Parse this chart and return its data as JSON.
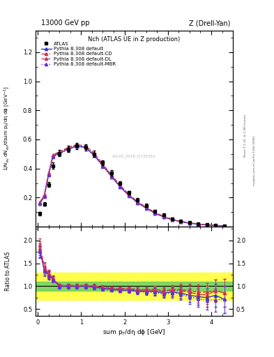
{
  "title_top": "13000 GeV pp",
  "title_right": "Z (Drell-Yan)",
  "plot_title": "Nch (ATLAS UE in Z production)",
  "xlabel": "sum p$_T$/dη dϕ [GeV]",
  "ylabel_main": "1/N$_{ev}$ dN$_{ev}$/dsum p$_T$/dη dϕ [GeV$^{-1}$]",
  "ylabel_ratio": "Ratio to ATLAS",
  "watermark": "ATLAS_2019_I1735351",
  "rivet_text": "Rivet 3.1.10, ≥ 3.3M events",
  "arxiv_text": "mcplots.cern.ch [arXiv:1306.3436]",
  "xlim": [
    -0.05,
    4.5
  ],
  "ylim_main": [
    0,
    1.35
  ],
  "ylim_ratio": [
    0.35,
    2.3
  ],
  "atlas_x": [
    0.05,
    0.15,
    0.25,
    0.35,
    0.5,
    0.7,
    0.9,
    1.1,
    1.3,
    1.5,
    1.7,
    1.9,
    2.1,
    2.3,
    2.5,
    2.7,
    2.9,
    3.1,
    3.3,
    3.5,
    3.7,
    3.9,
    4.1,
    4.3
  ],
  "atlas_y": [
    0.09,
    0.155,
    0.29,
    0.42,
    0.505,
    0.535,
    0.555,
    0.545,
    0.5,
    0.44,
    0.37,
    0.3,
    0.235,
    0.185,
    0.145,
    0.105,
    0.08,
    0.055,
    0.04,
    0.03,
    0.022,
    0.016,
    0.01,
    0.007
  ],
  "atlas_yerr": [
    0.012,
    0.012,
    0.018,
    0.022,
    0.022,
    0.022,
    0.022,
    0.022,
    0.022,
    0.018,
    0.018,
    0.014,
    0.012,
    0.012,
    0.012,
    0.01,
    0.009,
    0.007,
    0.006,
    0.005,
    0.004,
    0.003,
    0.002,
    0.002
  ],
  "py_default_x": [
    0.05,
    0.15,
    0.25,
    0.35,
    0.5,
    0.7,
    0.9,
    1.1,
    1.3,
    1.5,
    1.7,
    1.9,
    2.1,
    2.3,
    2.5,
    2.7,
    2.9,
    3.1,
    3.3,
    3.5,
    3.7,
    3.9,
    4.1,
    4.3
  ],
  "py_default_y": [
    0.16,
    0.21,
    0.36,
    0.485,
    0.505,
    0.535,
    0.555,
    0.545,
    0.49,
    0.42,
    0.345,
    0.275,
    0.215,
    0.165,
    0.128,
    0.093,
    0.068,
    0.048,
    0.034,
    0.024,
    0.017,
    0.012,
    0.008,
    0.005
  ],
  "py_cd_x": [
    0.05,
    0.15,
    0.25,
    0.35,
    0.5,
    0.7,
    0.9,
    1.1,
    1.3,
    1.5,
    1.7,
    1.9,
    2.1,
    2.3,
    2.5,
    2.7,
    2.9,
    3.1,
    3.3,
    3.5,
    3.7,
    3.9,
    4.1,
    4.3
  ],
  "py_cd_y": [
    0.165,
    0.215,
    0.365,
    0.49,
    0.51,
    0.54,
    0.56,
    0.55,
    0.5,
    0.425,
    0.35,
    0.28,
    0.22,
    0.17,
    0.132,
    0.096,
    0.07,
    0.05,
    0.036,
    0.026,
    0.018,
    0.013,
    0.009,
    0.006
  ],
  "py_dl_x": [
    0.05,
    0.15,
    0.25,
    0.35,
    0.5,
    0.7,
    0.9,
    1.1,
    1.3,
    1.5,
    1.7,
    1.9,
    2.1,
    2.3,
    2.5,
    2.7,
    2.9,
    3.1,
    3.3,
    3.5,
    3.7,
    3.9,
    4.1,
    4.3
  ],
  "py_dl_y": [
    0.17,
    0.22,
    0.37,
    0.495,
    0.515,
    0.545,
    0.565,
    0.555,
    0.505,
    0.43,
    0.355,
    0.285,
    0.223,
    0.172,
    0.134,
    0.098,
    0.072,
    0.051,
    0.037,
    0.027,
    0.019,
    0.014,
    0.009,
    0.006
  ],
  "py_mbr_x": [
    0.05,
    0.15,
    0.25,
    0.35,
    0.5,
    0.7,
    0.9,
    1.1,
    1.3,
    1.5,
    1.7,
    1.9,
    2.1,
    2.3,
    2.5,
    2.7,
    2.9,
    3.1,
    3.3,
    3.5,
    3.7,
    3.9,
    4.1,
    4.3
  ],
  "py_mbr_y": [
    0.158,
    0.205,
    0.355,
    0.48,
    0.5,
    0.53,
    0.55,
    0.54,
    0.488,
    0.415,
    0.342,
    0.272,
    0.212,
    0.163,
    0.126,
    0.091,
    0.066,
    0.047,
    0.033,
    0.023,
    0.016,
    0.011,
    0.007,
    0.005
  ],
  "color_default": "#3333cc",
  "color_cd": "#cc3333",
  "color_dl": "#cc3366",
  "color_mbr": "#6633cc",
  "ratio_default_y": [
    1.78,
    1.35,
    1.24,
    1.155,
    1.0,
    1.0,
    1.0,
    1.0,
    0.98,
    0.955,
    0.932,
    0.917,
    0.915,
    0.892,
    0.883,
    0.886,
    0.85,
    0.873,
    0.85,
    0.8,
    0.773,
    0.75,
    0.8,
    0.714
  ],
  "ratio_cd_y": [
    1.83,
    1.39,
    1.26,
    1.167,
    1.01,
    1.009,
    1.009,
    1.009,
    1.0,
    0.966,
    0.946,
    0.933,
    0.936,
    0.919,
    0.91,
    0.914,
    0.875,
    0.909,
    0.9,
    0.867,
    0.818,
    0.813,
    0.9,
    0.857
  ],
  "ratio_dl_y": [
    1.89,
    1.42,
    1.276,
    1.179,
    1.02,
    1.019,
    1.018,
    1.018,
    1.01,
    0.977,
    0.959,
    0.95,
    0.949,
    0.93,
    0.924,
    0.933,
    0.9,
    0.927,
    0.925,
    0.9,
    0.864,
    0.875,
    0.9,
    0.857
  ],
  "ratio_mbr_y": [
    1.76,
    1.32,
    1.224,
    1.143,
    0.99,
    0.991,
    0.991,
    0.991,
    0.976,
    0.943,
    0.924,
    0.907,
    0.902,
    0.881,
    0.869,
    0.867,
    0.825,
    0.855,
    0.825,
    0.767,
    0.727,
    0.688,
    0.7,
    0.714
  ],
  "ratio_default_yerr": [
    0.15,
    0.1,
    0.08,
    0.06,
    0.04,
    0.04,
    0.04,
    0.04,
    0.04,
    0.04,
    0.04,
    0.04,
    0.04,
    0.05,
    0.06,
    0.07,
    0.08,
    0.1,
    0.12,
    0.15,
    0.18,
    0.2,
    0.25,
    0.3
  ],
  "ratio_cd_yerr": [
    0.15,
    0.1,
    0.08,
    0.06,
    0.04,
    0.04,
    0.04,
    0.04,
    0.04,
    0.04,
    0.04,
    0.04,
    0.04,
    0.05,
    0.06,
    0.07,
    0.08,
    0.1,
    0.12,
    0.15,
    0.18,
    0.2,
    0.25,
    0.3
  ],
  "ratio_dl_yerr": [
    0.15,
    0.1,
    0.08,
    0.06,
    0.04,
    0.04,
    0.04,
    0.04,
    0.04,
    0.04,
    0.04,
    0.04,
    0.04,
    0.05,
    0.06,
    0.07,
    0.08,
    0.1,
    0.12,
    0.15,
    0.18,
    0.2,
    0.25,
    0.3
  ],
  "ratio_mbr_yerr": [
    0.15,
    0.1,
    0.08,
    0.06,
    0.04,
    0.04,
    0.04,
    0.04,
    0.04,
    0.04,
    0.04,
    0.04,
    0.04,
    0.05,
    0.06,
    0.07,
    0.08,
    0.1,
    0.12,
    0.15,
    0.18,
    0.2,
    0.25,
    0.3
  ]
}
